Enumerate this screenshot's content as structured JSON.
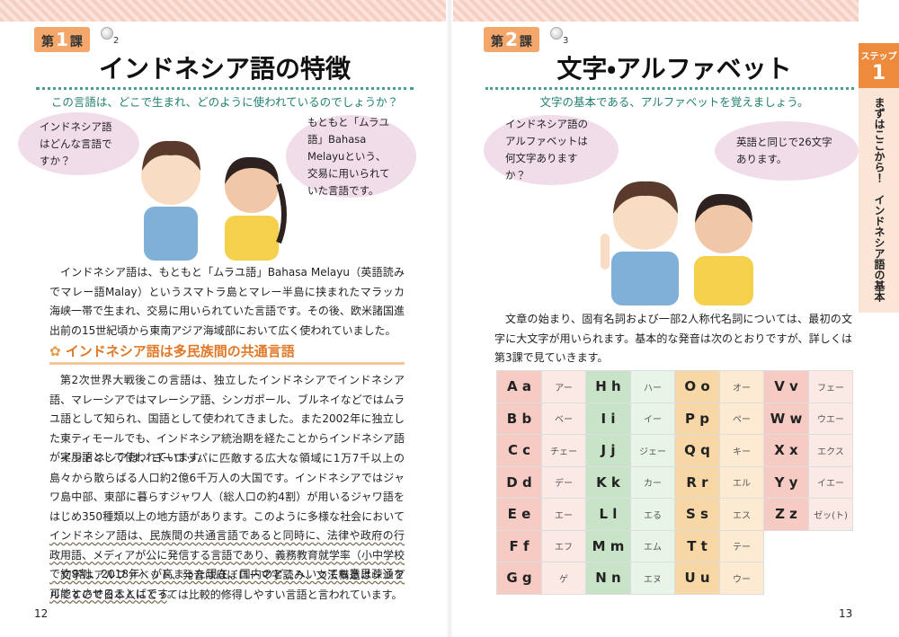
{
  "left_page": {
    "lesson": "第",
    "lesson_number": "1",
    "lesson_suffix": "課",
    "track": "2",
    "title": "インドネシア語の特徴",
    "subtitle": "この言語は、どこで生まれ、どのように使われているのでしょうか？",
    "bubbles": [
      "インドネシア語はどんな言語ですか？",
      "もともと「ムラユ語」Bahasa Melayuという、交易に用いられていた言語です。"
    ],
    "paragraph_1": "インドネシア語は、もともと「ムラユ語」Bahasa Melayu（英語読みでマレー語Malay）というスマトラ島とマレー半島に挟まれたマラッカ海峡一帯で生まれ、交易に用いられていた言語です。その後、欧米諸国進出前の15世紀頃から東南アジア海域部において広く使われていました。",
    "section_heading": "インドネシア語は多民族間の共通言語",
    "paragraph_2": "第2次世界大戦後この言語は、独立したインドネシアでインドネシア語、マレーシアではマレーシア語、シンガポール、ブルネイなどではムラユ語として知られ、国語として使われてきました。また2002年に独立した東ティモールでも、インドネシア統治期を経たことからインドネシア語が実用語として使われています。",
    "paragraph_3": {
      "start": "インドネシアは、ヨーロッパに匹敵する広大な領域に1万7千以上の島々から散らばる人口約2億6千万人の大国です。インドネシアではジャワ島中部、東部に暮らすジャワ人（総人口の約4割）が用いるジャワ語をはじめ350種類以上の地方語があります。このように多様な社会において",
      "underlined": "インドネシア語は、民族間の共通言語であると同時に、法律や政府の行政用語、メディアが公に発信する言語であり、義務教育就学率（小中学校で約9割、2018年）が高まった現在、国内のどこへいっても意思疎通を可能とさせることばです",
      "end": "。"
    },
    "paragraph_4": "文字はアルファベット、発音はほぼローマ字読み、文法構造はシンプルですので日本人にとっては比較的修得しやすい言語と言われています。",
    "page_number": "12"
  },
  "right_page": {
    "lesson": "第",
    "lesson_number": "2",
    "lesson_suffix": "課",
    "track": "3",
    "title": "文字・アルファベット",
    "subtitle": "文字の基本である、アルファベットを覚えましょう。",
    "bubbles": [
      "インドネシア語のアルファベットは何文字ありますか？",
      "英語と同じで26文字あります。"
    ],
    "paragraph": "文章の始まり、固有名詞および一部2人称代名詞については、最初の文字に大文字が用いられます。基本的な発音は次のとおりですが、詳しくは第3課で見ていきます。",
    "alphabet": [
      {
        "letter": "A a",
        "reading": "アー"
      },
      {
        "letter": "B b",
        "reading": "ベー"
      },
      {
        "letter": "C c",
        "reading": "チェー"
      },
      {
        "letter": "D d",
        "reading": "デー"
      },
      {
        "letter": "E e",
        "reading": "エー"
      },
      {
        "letter": "F f",
        "reading": "エフ"
      },
      {
        "letter": "G g",
        "reading": "ゲ"
      },
      {
        "letter": "H h",
        "reading": "ハー"
      },
      {
        "letter": "I i",
        "reading": "イー"
      },
      {
        "letter": "J j",
        "reading": "ジェー"
      },
      {
        "letter": "K k",
        "reading": "カー"
      },
      {
        "letter": "L l",
        "reading": "エる"
      },
      {
        "letter": "M m",
        "reading": "エム"
      },
      {
        "letter": "N n",
        "reading": "エヌ"
      },
      {
        "letter": "O o",
        "reading": "オー"
      },
      {
        "letter": "P p",
        "reading": "ペー"
      },
      {
        "letter": "Q q",
        "reading": "キー"
      },
      {
        "letter": "R r",
        "reading": "エル"
      },
      {
        "letter": "S s",
        "reading": "エス"
      },
      {
        "letter": "T t",
        "reading": "テー"
      },
      {
        "letter": "U u",
        "reading": "ウー"
      },
      {
        "letter": "V v",
        "reading": "フェー"
      },
      {
        "letter": "W w",
        "reading": "ウエー"
      },
      {
        "letter": "X x",
        "reading": "エクス"
      },
      {
        "letter": "Y y",
        "reading": "イエー"
      },
      {
        "letter": "Z z",
        "reading": "ゼッ(ト)"
      }
    ],
    "page_number": "13",
    "side_tab": {
      "step": "ステップ",
      "step_number": "1",
      "text": "まずはここから！　インドネシア語の基本"
    }
  }
}
